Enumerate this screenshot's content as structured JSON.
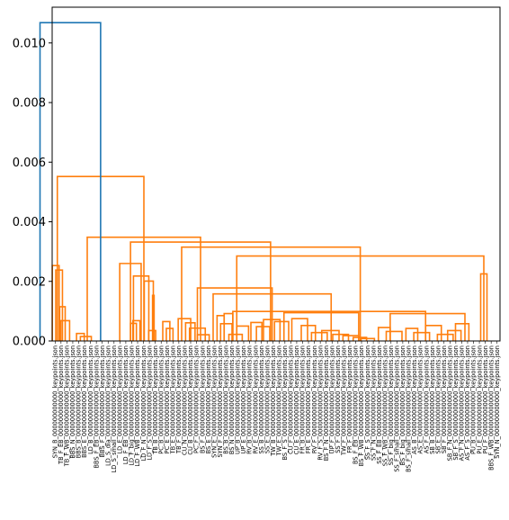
{
  "chart_data": {
    "type": "dendrogram",
    "title": "",
    "xlabel": "",
    "ylabel": "",
    "ylim": [
      0,
      0.0112
    ],
    "yticks": [
      0.0,
      0.002,
      0.004,
      0.006,
      0.008,
      0.01
    ],
    "ytick_labels": [
      "0.000",
      "0.002",
      "0.004",
      "0.006",
      "0.008",
      "0.010"
    ],
    "colors": {
      "root": "#1f77b4",
      "cluster": "#ff7f0e"
    },
    "leaf_count": 76,
    "leaves": [
      "SYN_B_000000000000_keypoints.json",
      "TB_F_EB_000000000000_keypoints.json",
      "TB_F_WB_000000000000_keypoints.json",
      "BBS_N_000000000000_keypoints.json",
      "BBS_B_000000000000_keypoints.json",
      "BBS_E_000000000000_keypoints.json",
      "LD_B_000000000000_keypoints.json",
      "BBS_F_EB_000000000000_keypoints.json",
      "BBS_F_000000000000_keypoints.json",
      "LD_S_dia_000000000000_keypoints.json",
      "LD_S_small_000000000000_keypoints.json",
      "LD_E_000000000000_keypoints.json",
      "LD_F_EB_000000000000_keypoints.json",
      "LD_F_big_000000000000_keypoints.json",
      "LD_F_WB_000000000000_keypoints.json",
      "LD_F_N_000000000000_keypoints.json",
      "LD_F_S_000000000000_keypoints.json",
      "TB_B_000000000000_keypoints.json",
      "PC_B_000000000000_keypoints.json",
      "PC_E_000000000000_keypoints.json",
      "TB_E_000000000000_keypoints.json",
      "TB_F_000000000000_keypoints.json",
      "CU_N_000000000000_keypoints.json",
      "CU_B_000000000000_keypoints.json",
      "PC_F_000000000000_keypoints.json",
      "BS_F_000000000000_keypoints.json",
      "BS_E_000000000000_keypoints.json",
      "SYN_E_000000000000_keypoints.json",
      "SYN_F_000000000000_keypoints.json",
      "BS_B_000000000000_keypoints.json",
      "BS_N_000000000000_keypoints.json",
      "UP_B_000000000000_keypoints.json",
      "UP_E_000000000000_keypoints.json",
      "RV_B_000000000000_keypoints.json",
      "RV_E_000000000000_keypoints.json",
      "SS_B_000000000000_keypoints.json",
      "SS_E_000000000000_keypoints.json",
      "TW_B_000000000000_keypoints.json",
      "TW_E_000000000000_keypoints.json",
      "BS_F_S_000000000000_keypoints.json",
      "CU_F_000000000000_keypoints.json",
      "CU_E_000000000000_keypoints.json",
      "FR_B_000000000000_keypoints.json",
      "FR_E_000000000000_keypoints.json",
      "RV_F_000000000000_keypoints.json",
      "RV_F_S_000000000000_keypoints.json",
      "BS_F_N_000000000000_keypoints.json",
      "UP_F_000000000000_keypoints.json",
      "SS_F_000000000000_keypoints.json",
      "TW_F_000000000000_keypoints.json",
      "FR_F_000000000000_keypoints.json",
      "BS_F_EB_000000000000_keypoints.json",
      "BS_F_WB_000000000000_keypoints.json",
      "SS_F_S_000000000000_keypoints.json",
      "SS_F_N_000000000000_keypoints.json",
      "SS_F_EB_000000000000_keypoints.json",
      "SS_F_WB_000000000000_keypoints.json",
      "SS_F_big_000000000000_keypoints.json",
      "SS_F_small_000000000000_keypoints.json",
      "BS_F_big_000000000000_keypoints.json",
      "BS_F_small_000000000000_keypoints.json",
      "AS_B_000000000000_keypoints.json",
      "AS_E_000000000000_keypoints.json",
      "AS_F_000000000000_keypoints.json",
      "SB_B_000000000000_keypoints.json",
      "SB_E_000000000000_keypoints.json",
      "SB_F_000000000000_keypoints.json",
      "SB_F_N_000000000000_keypoints.json",
      "SB_F_S_000000000000_keypoints.json",
      "AS_F_N_000000000000_keypoints.json",
      "AS_F_S_000000000000_keypoints.json",
      "PU_B_000000000000_keypoints.json",
      "PU_E_000000000000_keypoints.json",
      "PU_F_000000000000_keypoints.json",
      "BBS_F_WB_000000000000_keypoints.json",
      "SYN_N_000000000000_keypoints.json"
    ],
    "links": [
      {
        "left": 6.4,
        "right": 17.6,
        "height": 0.00068,
        "color": "cluster"
      },
      {
        "left": 5,
        "right": 12,
        "height": 0.00115,
        "color": "cluster"
      },
      {
        "left": 0,
        "right": 8.5,
        "height": 0.00238,
        "color": "cluster"
      },
      {
        "left": -4.4,
        "right": 4.25,
        "height": 0.00253,
        "color": "cluster"
      },
      {
        "left": 26.4,
        "right": 36.2,
        "height": 0.00025,
        "color": "cluster"
      },
      {
        "left": 31.3,
        "right": 45.2,
        "height": 0.00015,
        "color": "cluster"
      },
      {
        "left": 98,
        "right": 107,
        "height": 0.00068,
        "color": "cluster"
      },
      {
        "left": 95,
        "right": 102.5,
        "height": 0.00059,
        "color": "cluster"
      },
      {
        "left": 118,
        "right": 127,
        "height": 0.00035,
        "color": "cluster"
      },
      {
        "left": 123,
        "right": 125,
        "height": 0.00153,
        "color": "cluster"
      },
      {
        "left": 112.5,
        "right": 124,
        "height": 0.00201,
        "color": "cluster"
      },
      {
        "left": 98.75,
        "right": 118.25,
        "height": 0.00218,
        "color": "cluster"
      },
      {
        "left": 81.3,
        "right": 108.5,
        "height": 0.0026,
        "color": "cluster"
      },
      {
        "left": 136,
        "right": 145,
        "height": 0.00065,
        "color": "cluster"
      },
      {
        "left": 140.5,
        "right": 149,
        "height": 0.00042,
        "color": "cluster"
      },
      {
        "left": 155.6,
        "right": 171.5,
        "height": 0.00075,
        "color": "cluster"
      },
      {
        "left": 165,
        "right": 177,
        "height": 0.00061,
        "color": "cluster"
      },
      {
        "left": 170,
        "right": 190,
        "height": 0.00043,
        "color": "cluster"
      },
      {
        "left": 180,
        "right": 195,
        "height": 0.00021,
        "color": "cluster"
      },
      {
        "left": 205,
        "right": 214,
        "height": 0.00085,
        "color": "cluster"
      },
      {
        "left": 209.5,
        "right": 224,
        "height": 0.00058,
        "color": "cluster"
      },
      {
        "left": 220,
        "right": 237,
        "height": 0.00022,
        "color": "cluster"
      },
      {
        "left": 230,
        "right": 245,
        "height": 0.0005,
        "color": "cluster"
      },
      {
        "left": 248,
        "right": 262,
        "height": 0.00062,
        "color": "cluster"
      },
      {
        "left": 255,
        "right": 272,
        "height": 0.00048,
        "color": "cluster"
      },
      {
        "left": 264,
        "right": 285,
        "height": 0.00072,
        "color": "cluster"
      },
      {
        "left": 278,
        "right": 296,
        "height": 0.00065,
        "color": "cluster"
      },
      {
        "left": 300,
        "right": 320,
        "height": 0.00075,
        "color": "cluster"
      },
      {
        "left": 312,
        "right": 330,
        "height": 0.00052,
        "color": "cluster"
      },
      {
        "left": 325,
        "right": 345,
        "height": 0.00028,
        "color": "cluster"
      },
      {
        "left": 338,
        "right": 360,
        "height": 0.00035,
        "color": "cluster"
      },
      {
        "left": 352,
        "right": 372,
        "height": 0.00022,
        "color": "cluster"
      },
      {
        "left": 365,
        "right": 385,
        "height": 0.00018,
        "color": "cluster"
      },
      {
        "left": 378,
        "right": 395,
        "height": 0.00012,
        "color": "cluster"
      },
      {
        "left": 388,
        "right": 405,
        "height": 8e-05,
        "color": "cluster"
      },
      {
        "left": 214,
        "right": 225,
        "height": 0.00092,
        "color": "cluster"
      },
      {
        "left": 290,
        "right": 385,
        "height": 0.00095,
        "color": "cluster"
      },
      {
        "left": 410,
        "right": 425,
        "height": 0.00045,
        "color": "cluster"
      },
      {
        "left": 420,
        "right": 440,
        "height": 0.00032,
        "color": "cluster"
      },
      {
        "left": 445,
        "right": 460,
        "height": 0.00042,
        "color": "cluster"
      },
      {
        "left": 455,
        "right": 475,
        "height": 0.00028,
        "color": "cluster"
      },
      {
        "left": 470,
        "right": 490,
        "height": 0.00052,
        "color": "cluster"
      },
      {
        "left": 485,
        "right": 505,
        "height": 0.00022,
        "color": "cluster"
      },
      {
        "left": 498,
        "right": 515,
        "height": 0.00035,
        "color": "cluster"
      },
      {
        "left": 508,
        "right": 525,
        "height": 0.00058,
        "color": "cluster"
      },
      {
        "left": 425,
        "right": 520,
        "height": 0.00092,
        "color": "cluster"
      },
      {
        "left": 225,
        "right": 470,
        "height": 0.00099,
        "color": "cluster"
      },
      {
        "left": 200,
        "right": 350,
        "height": 0.00158,
        "color": "cluster"
      },
      {
        "left": 180,
        "right": 275,
        "height": 0.00178,
        "color": "cluster"
      },
      {
        "left": 540,
        "right": 548,
        "height": 0.00225,
        "color": "cluster"
      },
      {
        "left": 230,
        "right": 544,
        "height": 0.00285,
        "color": "cluster"
      },
      {
        "left": 160,
        "right": 387,
        "height": 0.00315,
        "color": "cluster"
      },
      {
        "left": 95,
        "right": 273,
        "height": 0.00332,
        "color": "cluster"
      },
      {
        "left": 40,
        "right": 184,
        "height": 0.00348,
        "color": "cluster"
      },
      {
        "left": 2,
        "right": 112,
        "height": 0.00552,
        "color": "cluster"
      },
      {
        "left": -20,
        "right": 57,
        "height": 0.01068,
        "color": "root"
      }
    ]
  }
}
